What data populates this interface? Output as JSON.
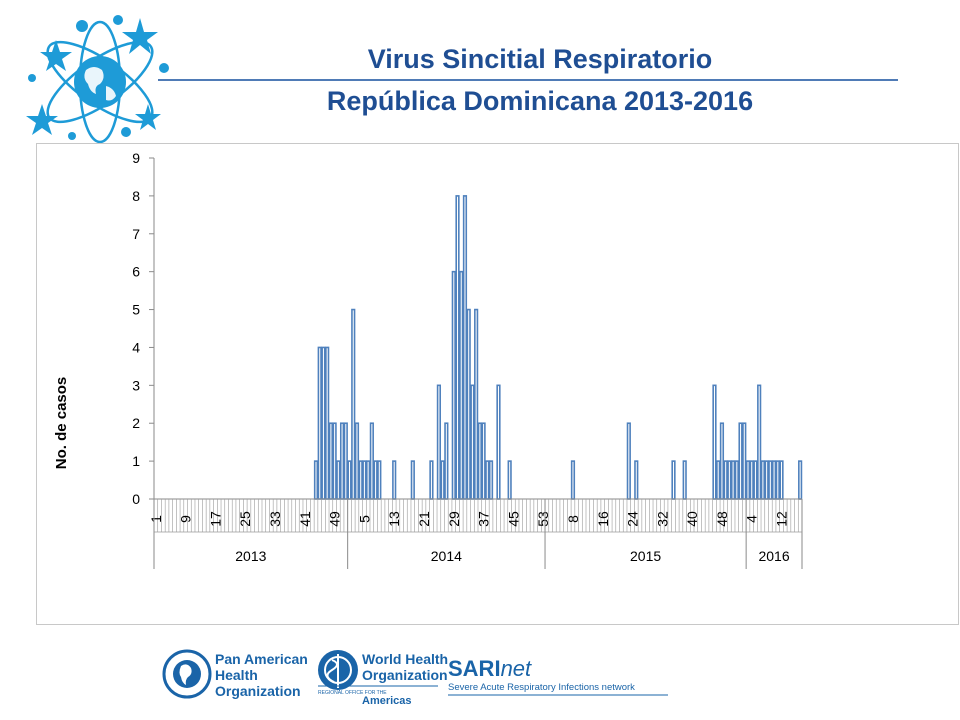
{
  "title": {
    "line1": "Virus Sincitial Respiratorio",
    "line2": "República Dominicana 2013-2016"
  },
  "colors": {
    "title": "#1f4e93",
    "bar_fill": "#ffffff",
    "bar_stroke": "#4f81bd",
    "logo_blue": "#1e9bd7",
    "footer_blue": "#1a64a8"
  },
  "chart_data": {
    "type": "bar",
    "ylabel": "No. de casos",
    "ylim": [
      0,
      9
    ],
    "yticks": [
      0,
      1,
      2,
      3,
      4,
      5,
      6,
      7,
      8,
      9
    ],
    "grid": false,
    "week_tick_labels": [
      "1",
      "9",
      "17",
      "25",
      "33",
      "41",
      "49",
      "5",
      "13",
      "21",
      "29",
      "37",
      "45",
      "53",
      "8",
      "16",
      "24",
      "32",
      "40",
      "48",
      "4",
      "12"
    ],
    "year_labels": [
      "2013",
      "2014",
      "2015",
      "2016"
    ],
    "years": [
      {
        "year": "2013",
        "weeks": [
          0,
          0,
          0,
          0,
          0,
          0,
          0,
          0,
          0,
          0,
          0,
          0,
          0,
          0,
          0,
          0,
          0,
          0,
          0,
          0,
          0,
          0,
          0,
          0,
          0,
          0,
          0,
          0,
          0,
          0,
          0,
          0,
          0,
          0,
          0,
          0,
          0,
          0,
          0,
          0,
          0,
          0,
          0,
          1,
          4,
          4,
          4,
          2,
          2,
          1,
          2,
          2
        ]
      },
      {
        "year": "2014",
        "weeks": [
          1,
          5,
          2,
          1,
          1,
          1,
          2,
          1,
          1,
          0,
          0,
          0,
          1,
          0,
          0,
          0,
          0,
          1,
          0,
          0,
          0,
          0,
          1,
          0,
          3,
          1,
          2,
          0,
          6,
          8,
          6,
          8,
          5,
          3,
          5,
          2,
          2,
          1,
          1,
          0,
          3,
          0,
          0,
          1,
          0,
          0,
          0,
          0,
          0,
          0,
          0,
          0,
          0
        ]
      },
      {
        "year": "2015",
        "weeks": [
          0,
          0,
          0,
          0,
          0,
          0,
          0,
          1,
          0,
          0,
          0,
          0,
          0,
          0,
          0,
          0,
          0,
          0,
          0,
          0,
          0,
          0,
          2,
          0,
          1,
          0,
          0,
          0,
          0,
          0,
          0,
          0,
          0,
          0,
          1,
          0,
          0,
          1,
          0,
          0,
          0,
          0,
          0,
          0,
          0,
          3,
          1,
          2,
          1,
          1,
          1,
          1,
          2,
          2
        ]
      },
      {
        "year": "2016",
        "weeks": [
          1,
          1,
          1,
          3,
          1,
          1,
          1,
          1,
          1,
          1,
          0,
          0,
          0,
          0,
          1
        ]
      }
    ]
  },
  "footer": {
    "paho": [
      "Pan American",
      "Health",
      "Organization"
    ],
    "who": [
      "World Health",
      "Organization"
    ],
    "who_regional": "REGIONAL OFFICE FOR THE",
    "who_americas": "Americas",
    "sarinet_sari": "SARI",
    "sarinet_net": "net",
    "sarinet_sub": "Severe Acute Respiratory Infections network"
  }
}
